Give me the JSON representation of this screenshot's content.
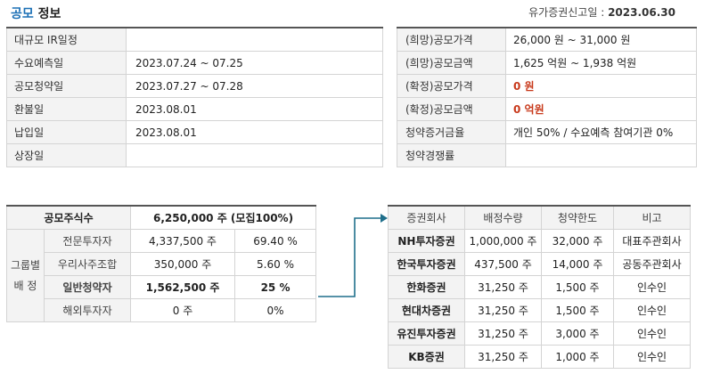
{
  "header": {
    "title_accent": "공모",
    "title_rest": "정보",
    "filing_label": "유가증권신고일 :",
    "filing_date": "2023.06.30"
  },
  "schedule": [
    {
      "label": "대규모 IR일정",
      "value": ""
    },
    {
      "label": "수요예측일",
      "value": "2023.07.24 ~ 07.25"
    },
    {
      "label": "공모청약일",
      "value": "2023.07.27 ~ 07.28"
    },
    {
      "label": "환불일",
      "value": "2023.08.01"
    },
    {
      "label": "납입일",
      "value": "2023.08.01"
    },
    {
      "label": "상장일",
      "value": ""
    }
  ],
  "pricing": [
    {
      "label": "(희망)공모가격",
      "value": "26,000 원 ~ 31,000 원"
    },
    {
      "label": "(희망)공모금액",
      "value": "1,625 억원  ~ 1,938 억원"
    },
    {
      "label": "(확정)공모가격",
      "value": "0 원"
    },
    {
      "label": "(확정)공모금액",
      "value": "0 억원"
    },
    {
      "label": "청약증거금율",
      "value": "개인 50% / 수요예측 참여기관 0%"
    },
    {
      "label": "청약경쟁률",
      "value": ""
    }
  ],
  "allocation": {
    "total_label": "공모주식수",
    "total_value": "6,250,000 주 (모집100%)",
    "group_label_line1": "그룹별",
    "group_label_line2": "배 정",
    "rows": [
      {
        "name": "전문투자자",
        "shares": "4,337,500 주",
        "pct": "69.40 %"
      },
      {
        "name": "우리사주조합",
        "shares": "350,000 주",
        "pct": "5.60 %"
      },
      {
        "name": "일반청약자",
        "shares": "1,562,500 주",
        "pct": "25 %"
      },
      {
        "name": "해외투자자",
        "shares": "0 주",
        "pct": "0%"
      }
    ]
  },
  "brokers": {
    "headers": [
      "증권회사",
      "배정수량",
      "청약한도",
      "비고"
    ],
    "rows": [
      {
        "firm": "NH투자증권",
        "qty": "1,000,000 주",
        "limit": "32,000 주",
        "note": "대표주관회사"
      },
      {
        "firm": "한국투자증권",
        "qty": "437,500 주",
        "limit": "14,000 주",
        "note": "공동주관회사"
      },
      {
        "firm": "한화증권",
        "qty": "31,250 주",
        "limit": "1,500 주",
        "note": "인수인"
      },
      {
        "firm": "현대차증권",
        "qty": "31,250 주",
        "limit": "1,500 주",
        "note": "인수인"
      },
      {
        "firm": "유진투자증권",
        "qty": "31,250 주",
        "limit": "3,000 주",
        "note": "인수인"
      },
      {
        "firm": "KB증권",
        "qty": "31,250 주",
        "limit": "1,000 주",
        "note": "인수인"
      }
    ]
  },
  "colors": {
    "accent": "#1a6fb5",
    "highlight_red": "#c8391b",
    "arrow": "#1f6f8b"
  }
}
